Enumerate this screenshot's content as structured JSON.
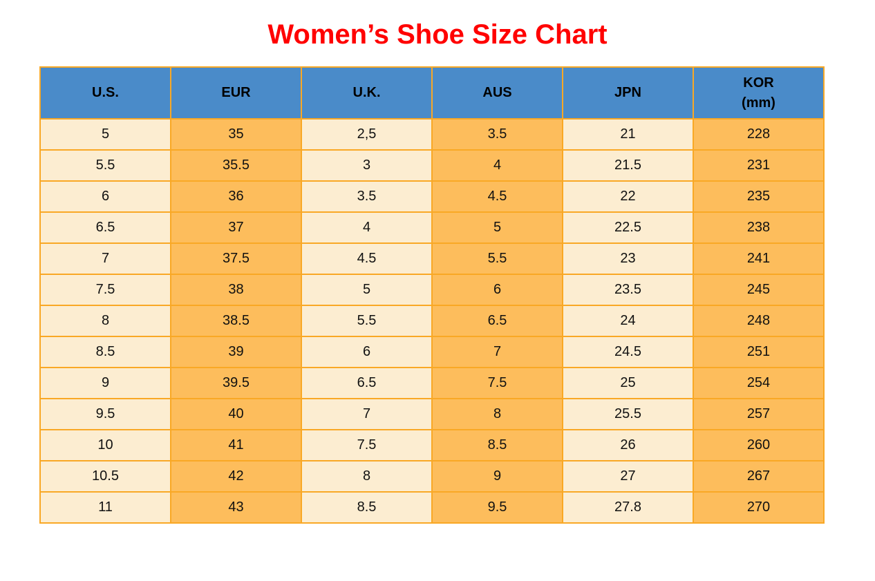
{
  "ui": {
    "title": "Women’s Shoe Size Chart",
    "header_labels": [
      "U.S.",
      "EUR",
      "U.K.",
      "AUS",
      "JPN",
      "KOR\n(mm)"
    ]
  },
  "colors": {
    "title_color": "#ff0000",
    "header_bg": "#4a8bc9",
    "header_text": "#000000",
    "cell_orange": "#fdbd5c",
    "cell_cream": "#fcedd1",
    "grid_border": "#f9a825",
    "cell_text": "#111111"
  },
  "chart_data": {
    "type": "table",
    "title": "Women’s Shoe Size Chart",
    "columns": [
      "U.S.",
      "EUR",
      "U.K.",
      "AUS",
      "JPN",
      "KOR (mm)"
    ],
    "rows": [
      [
        "5",
        "35",
        "2,5",
        "3.5",
        "21",
        "228"
      ],
      [
        "5.5",
        "35.5",
        "3",
        "4",
        "21.5",
        "231"
      ],
      [
        "6",
        "36",
        "3.5",
        "4.5",
        "22",
        "235"
      ],
      [
        "6.5",
        "37",
        "4",
        "5",
        "22.5",
        "238"
      ],
      [
        "7",
        "37.5",
        "4.5",
        "5.5",
        "23",
        "241"
      ],
      [
        "7.5",
        "38",
        "5",
        "6",
        "23.5",
        "245"
      ],
      [
        "8",
        "38.5",
        "5.5",
        "6.5",
        "24",
        "248"
      ],
      [
        "8.5",
        "39",
        "6",
        "7",
        "24.5",
        "251"
      ],
      [
        "9",
        "39.5",
        "6.5",
        "7.5",
        "25",
        "254"
      ],
      [
        "9.5",
        "40",
        "7",
        "8",
        "25.5",
        "257"
      ],
      [
        "10",
        "41",
        "7.5",
        "8.5",
        "26",
        "260"
      ],
      [
        "10.5",
        "42",
        "8",
        "9",
        "27",
        "267"
      ],
      [
        "11",
        "43",
        "8.5",
        "9.5",
        "27.8",
        "270"
      ]
    ],
    "column_styles": [
      "cream",
      "orange",
      "cream",
      "orange",
      "cream",
      "orange"
    ],
    "layout": {
      "header_bg": "blue",
      "grid": true,
      "alignment": "center"
    }
  }
}
